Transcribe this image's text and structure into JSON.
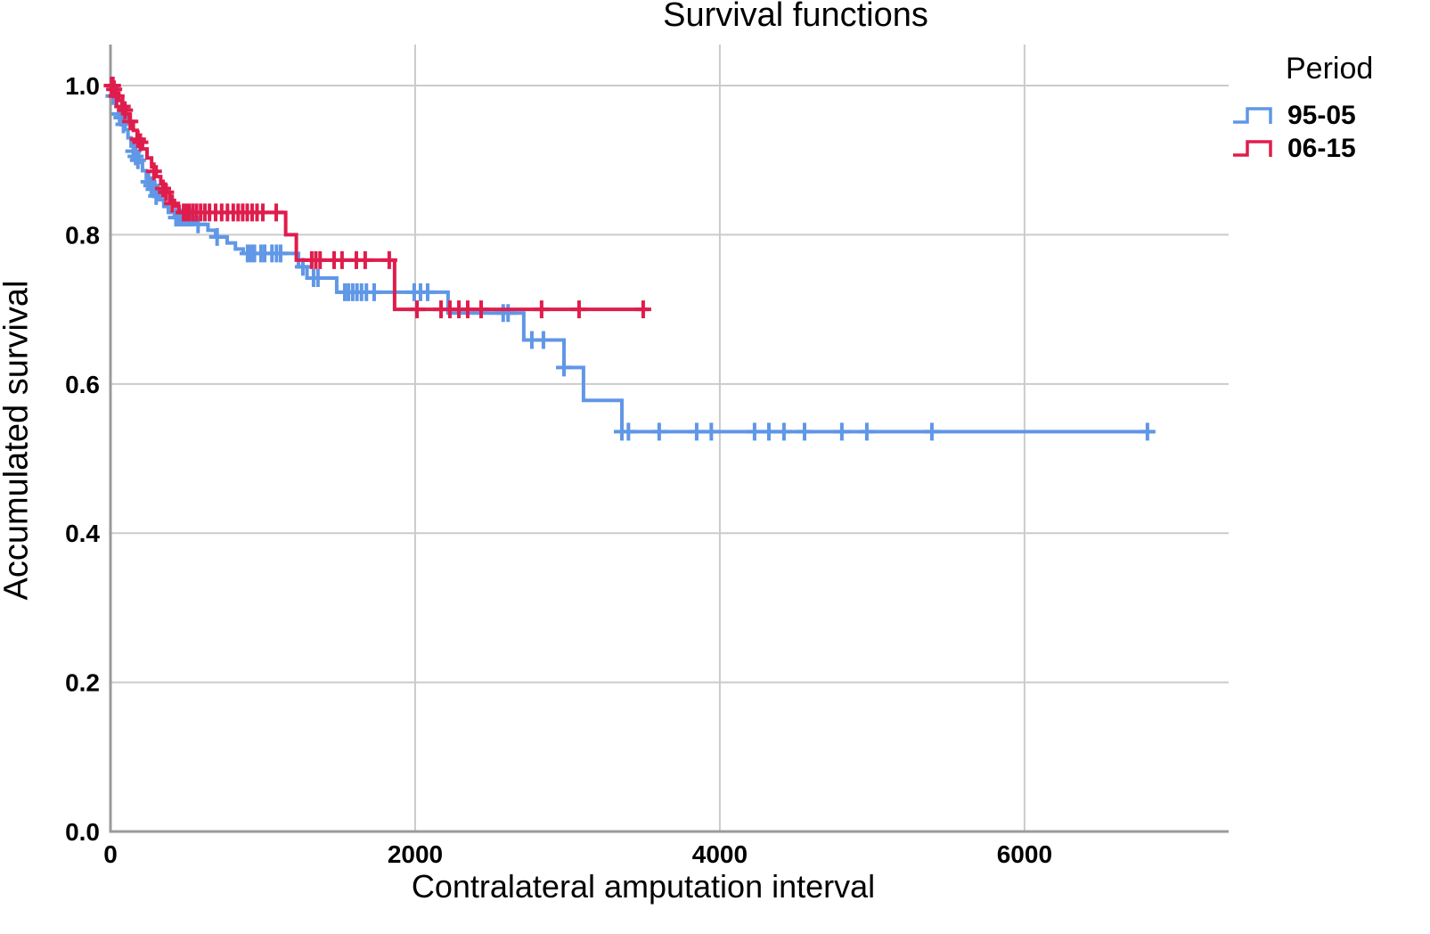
{
  "chart_data": {
    "type": "line",
    "subtype": "kaplan-meier-step",
    "title": "Survival functions",
    "xlabel": "Contralateral amputation interval",
    "ylabel": "Accumulated survival",
    "xlim": [
      0,
      7340
    ],
    "ylim": [
      0,
      1.055
    ],
    "grid": true,
    "legend_title": "Period",
    "legend_position": "right",
    "colors": {
      "grid": "#cbcbcb",
      "axis": "#9b9b9b",
      "text": "#000000"
    },
    "x_ticks": [
      {
        "label": "0",
        "value": 0
      },
      {
        "label": "2000",
        "value": 2000
      },
      {
        "label": "4000",
        "value": 4000
      },
      {
        "label": "6000",
        "value": 6000
      }
    ],
    "y_ticks": [
      {
        "label": "0.0",
        "value": 0.0
      },
      {
        "label": "0.2",
        "value": 0.2
      },
      {
        "label": "0.4",
        "value": 0.4
      },
      {
        "label": "0.6",
        "value": 0.6
      },
      {
        "label": "0.8",
        "value": 0.8
      },
      {
        "label": "1.0",
        "value": 1.0
      }
    ],
    "series": [
      {
        "name": "95-05",
        "color": "#6097E6",
        "end": 6848,
        "steps": [
          [
            0,
            1.0
          ],
          [
            15,
            0.986
          ],
          [
            35,
            0.972
          ],
          [
            55,
            0.962
          ],
          [
            75,
            0.952
          ],
          [
            95,
            0.941
          ],
          [
            115,
            0.93
          ],
          [
            135,
            0.919
          ],
          [
            160,
            0.908
          ],
          [
            185,
            0.897
          ],
          [
            210,
            0.886
          ],
          [
            235,
            0.876
          ],
          [
            260,
            0.866
          ],
          [
            290,
            0.856
          ],
          [
            320,
            0.847
          ],
          [
            350,
            0.838
          ],
          [
            380,
            0.83
          ],
          [
            420,
            0.823
          ],
          [
            555,
            0.814
          ],
          [
            640,
            0.806
          ],
          [
            690,
            0.797
          ],
          [
            766,
            0.789
          ],
          [
            820,
            0.781
          ],
          [
            871,
            0.775
          ],
          [
            1234,
            0.757
          ],
          [
            1290,
            0.742
          ],
          [
            1485,
            0.723
          ],
          [
            2216,
            0.695
          ],
          [
            2713,
            0.659
          ],
          [
            2977,
            0.622
          ],
          [
            3105,
            0.578
          ],
          [
            3357,
            0.536
          ]
        ],
        "censored": [
          [
            20,
            0.986
          ],
          [
            60,
            0.962
          ],
          [
            72,
            0.957
          ],
          [
            85,
            0.948
          ],
          [
            150,
            0.912
          ],
          [
            165,
            0.905
          ],
          [
            180,
            0.9
          ],
          [
            250,
            0.871
          ],
          [
            268,
            0.866
          ],
          [
            283,
            0.861
          ],
          [
            300,
            0.852
          ],
          [
            430,
            0.823
          ],
          [
            447,
            0.823
          ],
          [
            463,
            0.823
          ],
          [
            482,
            0.823
          ],
          [
            500,
            0.823
          ],
          [
            520,
            0.823
          ],
          [
            540,
            0.823
          ],
          [
            575,
            0.814
          ],
          [
            700,
            0.797
          ],
          [
            900,
            0.775
          ],
          [
            922,
            0.775
          ],
          [
            945,
            0.775
          ],
          [
            988,
            0.775
          ],
          [
            1012,
            0.775
          ],
          [
            1060,
            0.775
          ],
          [
            1090,
            0.775
          ],
          [
            1117,
            0.775
          ],
          [
            1263,
            0.757
          ],
          [
            1333,
            0.742
          ],
          [
            1362,
            0.742
          ],
          [
            1538,
            0.723
          ],
          [
            1562,
            0.723
          ],
          [
            1590,
            0.723
          ],
          [
            1618,
            0.723
          ],
          [
            1648,
            0.723
          ],
          [
            1680,
            0.723
          ],
          [
            1731,
            0.723
          ],
          [
            1994,
            0.723
          ],
          [
            2035,
            0.723
          ],
          [
            2082,
            0.723
          ],
          [
            2578,
            0.695
          ],
          [
            2610,
            0.695
          ],
          [
            2766,
            0.659
          ],
          [
            2842,
            0.659
          ],
          [
            2977,
            0.622
          ],
          [
            3357,
            0.536
          ],
          [
            3400,
            0.536
          ],
          [
            3602,
            0.536
          ],
          [
            3848,
            0.536
          ],
          [
            3944,
            0.536
          ],
          [
            4228,
            0.536
          ],
          [
            4322,
            0.536
          ],
          [
            4421,
            0.536
          ],
          [
            4556,
            0.536
          ],
          [
            4801,
            0.536
          ],
          [
            4965,
            0.536
          ],
          [
            5392,
            0.536
          ],
          [
            6807,
            0.536
          ]
        ]
      },
      {
        "name": "06-15",
        "color": "#DF1D4D",
        "end": 3532,
        "steps": [
          [
            0,
            1.0
          ],
          [
            30,
            0.99
          ],
          [
            55,
            0.98
          ],
          [
            75,
            0.972
          ],
          [
            100,
            0.962
          ],
          [
            125,
            0.952
          ],
          [
            150,
            0.94
          ],
          [
            175,
            0.928
          ],
          [
            210,
            0.915
          ],
          [
            240,
            0.903
          ],
          [
            270,
            0.891
          ],
          [
            300,
            0.878
          ],
          [
            330,
            0.868
          ],
          [
            360,
            0.857
          ],
          [
            390,
            0.846
          ],
          [
            420,
            0.838
          ],
          [
            450,
            0.83
          ],
          [
            1150,
            0.8
          ],
          [
            1220,
            0.766
          ],
          [
            1865,
            0.7
          ]
        ],
        "censored": [
          [
            8,
            1.0
          ],
          [
            16,
            1.0
          ],
          [
            24,
            0.995
          ],
          [
            40,
            0.986
          ],
          [
            80,
            0.972
          ],
          [
            95,
            0.967
          ],
          [
            130,
            0.952
          ],
          [
            180,
            0.928
          ],
          [
            196,
            0.924
          ],
          [
            285,
            0.885
          ],
          [
            345,
            0.862
          ],
          [
            365,
            0.857
          ],
          [
            405,
            0.842
          ],
          [
            480,
            0.83
          ],
          [
            497,
            0.83
          ],
          [
            515,
            0.83
          ],
          [
            540,
            0.83
          ],
          [
            565,
            0.83
          ],
          [
            592,
            0.83
          ],
          [
            620,
            0.83
          ],
          [
            650,
            0.83
          ],
          [
            690,
            0.83
          ],
          [
            730,
            0.83
          ],
          [
            768,
            0.83
          ],
          [
            806,
            0.83
          ],
          [
            838,
            0.83
          ],
          [
            868,
            0.83
          ],
          [
            898,
            0.83
          ],
          [
            930,
            0.83
          ],
          [
            962,
            0.83
          ],
          [
            1000,
            0.83
          ],
          [
            1088,
            0.83
          ],
          [
            1321,
            0.766
          ],
          [
            1348,
            0.766
          ],
          [
            1376,
            0.766
          ],
          [
            1468,
            0.766
          ],
          [
            1520,
            0.766
          ],
          [
            1614,
            0.766
          ],
          [
            1672,
            0.766
          ],
          [
            1830,
            0.766
          ],
          [
            2012,
            0.7
          ],
          [
            2170,
            0.7
          ],
          [
            2228,
            0.7
          ],
          [
            2287,
            0.7
          ],
          [
            2345,
            0.7
          ],
          [
            2433,
            0.7
          ],
          [
            2830,
            0.7
          ],
          [
            3076,
            0.7
          ],
          [
            3497,
            0.7
          ]
        ]
      }
    ]
  }
}
